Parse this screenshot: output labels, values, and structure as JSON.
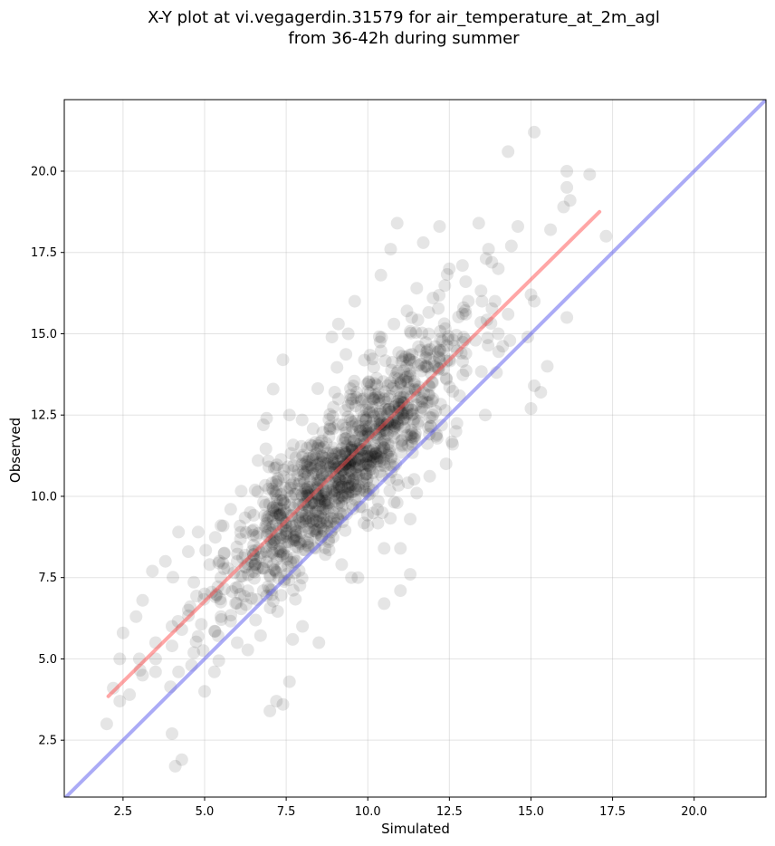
{
  "chart_data": {
    "type": "scatter",
    "title": [
      "X-Y plot at vi.vegagerdin.31579 for air_temperature_at_2m_agl",
      "from 36-42h during summer"
    ],
    "xlabel": "Simulated",
    "ylabel": "Observed",
    "xlim": [
      0.7,
      22.2
    ],
    "ylim": [
      0.75,
      22.2
    ],
    "xticks": [
      2.5,
      5.0,
      7.5,
      10.0,
      12.5,
      15.0,
      17.5,
      20.0
    ],
    "xtick_labels": [
      "2.5",
      "5.0",
      "7.5",
      "10.0",
      "12.5",
      "15.0",
      "17.5",
      "20.0"
    ],
    "yticks": [
      2.5,
      5.0,
      7.5,
      10.0,
      12.5,
      15.0,
      17.5,
      20.0
    ],
    "ytick_labels": [
      "2.5",
      "5.0",
      "7.5",
      "10.0",
      "12.5",
      "15.0",
      "17.5",
      "20.0"
    ],
    "grid": true,
    "point_color": "#000000",
    "point_opacity": 0.1,
    "fit_line": {
      "x": [
        2.05,
        17.1
      ],
      "y": [
        3.85,
        18.75
      ],
      "color": "#ff4d4d"
    },
    "identity_line": {
      "x": [
        0.7,
        22.2
      ],
      "y": [
        0.7,
        22.2
      ],
      "color": "#6666ee"
    },
    "series": [
      {
        "points": [
          [
            15.1,
            21.2
          ],
          [
            14.3,
            20.6
          ],
          [
            16.1,
            20.0
          ],
          [
            16.8,
            19.9
          ],
          [
            16.1,
            19.5
          ],
          [
            16.2,
            19.1
          ],
          [
            16.0,
            18.9
          ],
          [
            17.3,
            18.0
          ],
          [
            15.6,
            18.2
          ],
          [
            14.6,
            18.3
          ],
          [
            12.2,
            18.3
          ],
          [
            10.9,
            18.4
          ],
          [
            13.4,
            18.4
          ],
          [
            11.7,
            17.8
          ],
          [
            10.7,
            17.6
          ],
          [
            13.7,
            17.6
          ],
          [
            12.5,
            17.0
          ],
          [
            12.9,
            17.1
          ],
          [
            13.0,
            16.6
          ],
          [
            13.8,
            17.2
          ],
          [
            14.4,
            17.7
          ],
          [
            14.0,
            17.0
          ],
          [
            10.4,
            16.8
          ],
          [
            11.5,
            16.4
          ],
          [
            12.0,
            16.1
          ],
          [
            13.9,
            16.0
          ],
          [
            13.5,
            16.0
          ],
          [
            15.0,
            16.2
          ],
          [
            15.1,
            16.0
          ],
          [
            16.1,
            15.5
          ],
          [
            14.3,
            15.6
          ],
          [
            11.2,
            15.7
          ],
          [
            10.8,
            15.3
          ],
          [
            9.6,
            16.0
          ],
          [
            8.9,
            14.9
          ],
          [
            9.4,
            15.0
          ],
          [
            9.1,
            15.3
          ],
          [
            14.9,
            14.9
          ],
          [
            15.1,
            13.4
          ],
          [
            15.5,
            14.0
          ],
          [
            15.3,
            13.2
          ],
          [
            15.0,
            12.7
          ],
          [
            13.6,
            12.5
          ],
          [
            12.7,
            12.0
          ],
          [
            12.4,
            11.0
          ],
          [
            12.6,
            11.6
          ],
          [
            11.5,
            10.1
          ],
          [
            10.9,
            9.8
          ],
          [
            11.3,
            9.3
          ],
          [
            11.0,
            8.4
          ],
          [
            10.5,
            8.4
          ],
          [
            9.7,
            7.5
          ],
          [
            9.5,
            7.5
          ],
          [
            11.3,
            7.6
          ],
          [
            11.0,
            7.1
          ],
          [
            10.5,
            6.7
          ],
          [
            7.4,
            14.2
          ],
          [
            6.9,
            12.4
          ],
          [
            7.1,
            13.3
          ],
          [
            6.8,
            12.2
          ],
          [
            7.6,
            12.5
          ],
          [
            5.8,
            9.6
          ],
          [
            5.5,
            9.1
          ],
          [
            4.8,
            8.9
          ],
          [
            4.2,
            8.9
          ],
          [
            4.5,
            8.3
          ],
          [
            3.8,
            8.0
          ],
          [
            3.4,
            7.7
          ],
          [
            3.1,
            6.8
          ],
          [
            2.9,
            6.3
          ],
          [
            2.5,
            5.8
          ],
          [
            2.4,
            5.0
          ],
          [
            2.2,
            4.1
          ],
          [
            2.0,
            3.0
          ],
          [
            2.4,
            3.7
          ],
          [
            2.7,
            3.9
          ],
          [
            3.1,
            4.5
          ],
          [
            3.5,
            5.0
          ],
          [
            4.0,
            5.4
          ],
          [
            4.3,
            5.9
          ],
          [
            4.6,
            4.8
          ],
          [
            5.0,
            4.0
          ],
          [
            5.3,
            4.6
          ],
          [
            4.2,
            4.6
          ],
          [
            4.0,
            2.7
          ],
          [
            4.3,
            1.9
          ],
          [
            4.1,
            1.7
          ],
          [
            7.0,
            3.4
          ],
          [
            7.4,
            3.6
          ],
          [
            7.6,
            4.3
          ],
          [
            7.2,
            3.7
          ],
          [
            7.7,
            5.6
          ],
          [
            8.5,
            5.5
          ],
          [
            8.0,
            6.0
          ],
          [
            6.0,
            5.5
          ],
          [
            5.5,
            6.3
          ],
          [
            9.2,
            7.9
          ],
          [
            8.8,
            8.6
          ],
          [
            10.0,
            9.1
          ],
          [
            10.3,
            9.6
          ],
          [
            11.4,
            12.3
          ],
          [
            12.0,
            13.0
          ],
          [
            12.5,
            14.2
          ],
          [
            13.3,
            14.8
          ],
          [
            14.0,
            15.0
          ],
          [
            13.0,
            15.6
          ],
          [
            12.2,
            14.5
          ],
          [
            11.8,
            14.0
          ],
          [
            12.0,
            12.5
          ],
          [
            11.0,
            13.5
          ],
          [
            10.5,
            13.0
          ],
          [
            10.0,
            12.0
          ],
          [
            9.5,
            11.5
          ],
          [
            9.0,
            11.0
          ],
          [
            8.5,
            10.5
          ],
          [
            8.0,
            10.0
          ],
          [
            7.5,
            9.5
          ],
          [
            7.0,
            9.0
          ],
          [
            6.5,
            8.5
          ],
          [
            6.0,
            8.0
          ],
          [
            5.5,
            7.5
          ],
          [
            5.0,
            7.0
          ],
          [
            4.5,
            6.5
          ],
          [
            4.0,
            6.0
          ],
          [
            3.5,
            5.5
          ],
          [
            3.0,
            5.0
          ],
          [
            8.2,
            9.2
          ],
          [
            8.7,
            9.6
          ],
          [
            9.3,
            10.1
          ],
          [
            9.8,
            10.8
          ],
          [
            10.2,
            11.3
          ],
          [
            10.6,
            11.9
          ],
          [
            11.1,
            12.4
          ],
          [
            7.8,
            8.8
          ],
          [
            7.3,
            8.3
          ],
          [
            6.8,
            7.8
          ]
        ]
      }
    ]
  }
}
